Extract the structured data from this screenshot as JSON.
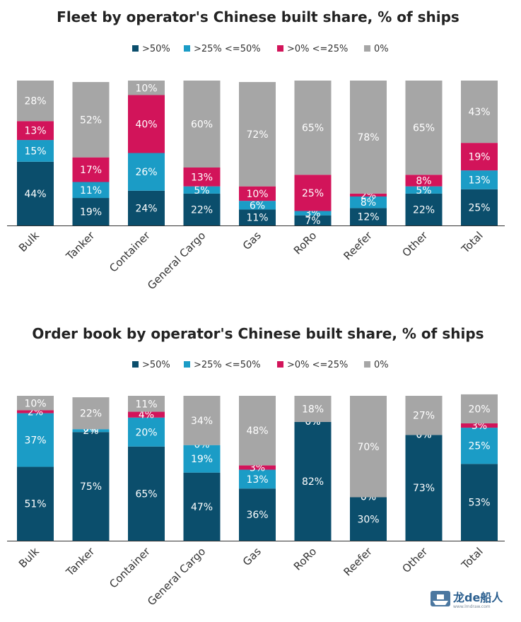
{
  "colors": {
    "gt50": "#0b4e6c",
    "gt25_le50": "#1b9cc6",
    "gt0_le25": "#d2145a",
    "zero": "#a6a6a6",
    "axis": "#333333"
  },
  "legend": [
    {
      "key": "gt50",
      "label": ">50%"
    },
    {
      "key": "gt25_le50",
      "label": ">25% <=50%"
    },
    {
      "key": "gt0_le25",
      "label": ">0% <=25%"
    },
    {
      "key": "zero",
      "label": "0%"
    }
  ],
  "watermark": {
    "text": "龙de船人",
    "url": "www.lmdraw.com"
  },
  "chart_data": [
    {
      "type": "bar",
      "stacked": true,
      "title": "Fleet by operator's Chinese built share, % of ships",
      "categories": [
        "Bulk",
        "Tanker",
        "Container",
        "General Cargo",
        "Gas",
        "RoRo",
        "Reefer",
        "Other",
        "Total"
      ],
      "ylim": [
        0,
        100
      ],
      "legend_position": "top",
      "series": [
        {
          "name": ">50%",
          "key": "gt50",
          "values": [
            44,
            19,
            24,
            22,
            11,
            7,
            12,
            22,
            25
          ]
        },
        {
          "name": ">25% <=50%",
          "key": "gt25_le50",
          "values": [
            15,
            11,
            26,
            5,
            6,
            3,
            8,
            5,
            13
          ]
        },
        {
          "name": ">0% <=25%",
          "key": "gt0_le25",
          "values": [
            13,
            17,
            40,
            13,
            10,
            25,
            2,
            8,
            19
          ]
        },
        {
          "name": "0%",
          "key": "zero",
          "values": [
            28,
            52,
            10,
            60,
            72,
            65,
            78,
            65,
            43
          ]
        }
      ]
    },
    {
      "type": "bar",
      "stacked": true,
      "title": "Order book by operator's Chinese built share, % of ships",
      "categories": [
        "Bulk",
        "Tanker",
        "Container",
        "General Cargo",
        "Gas",
        "RoRo",
        "Reefer",
        "Other",
        "Total"
      ],
      "ylim": [
        0,
        100
      ],
      "legend_position": "top",
      "series": [
        {
          "name": ">50%",
          "key": "gt50",
          "values": [
            51,
            75,
            65,
            47,
            36,
            82,
            30,
            73,
            53
          ]
        },
        {
          "name": ">25% <=50%",
          "key": "gt25_le50",
          "values": [
            37,
            2,
            20,
            19,
            13,
            0,
            0,
            0,
            25
          ]
        },
        {
          "name": ">0% <=25%",
          "key": "gt0_le25",
          "values": [
            2,
            0,
            4,
            0,
            3,
            0,
            0,
            0,
            3
          ]
        },
        {
          "name": "0%",
          "key": "zero",
          "values": [
            10,
            22,
            11,
            34,
            48,
            18,
            70,
            27,
            20
          ]
        }
      ]
    }
  ]
}
